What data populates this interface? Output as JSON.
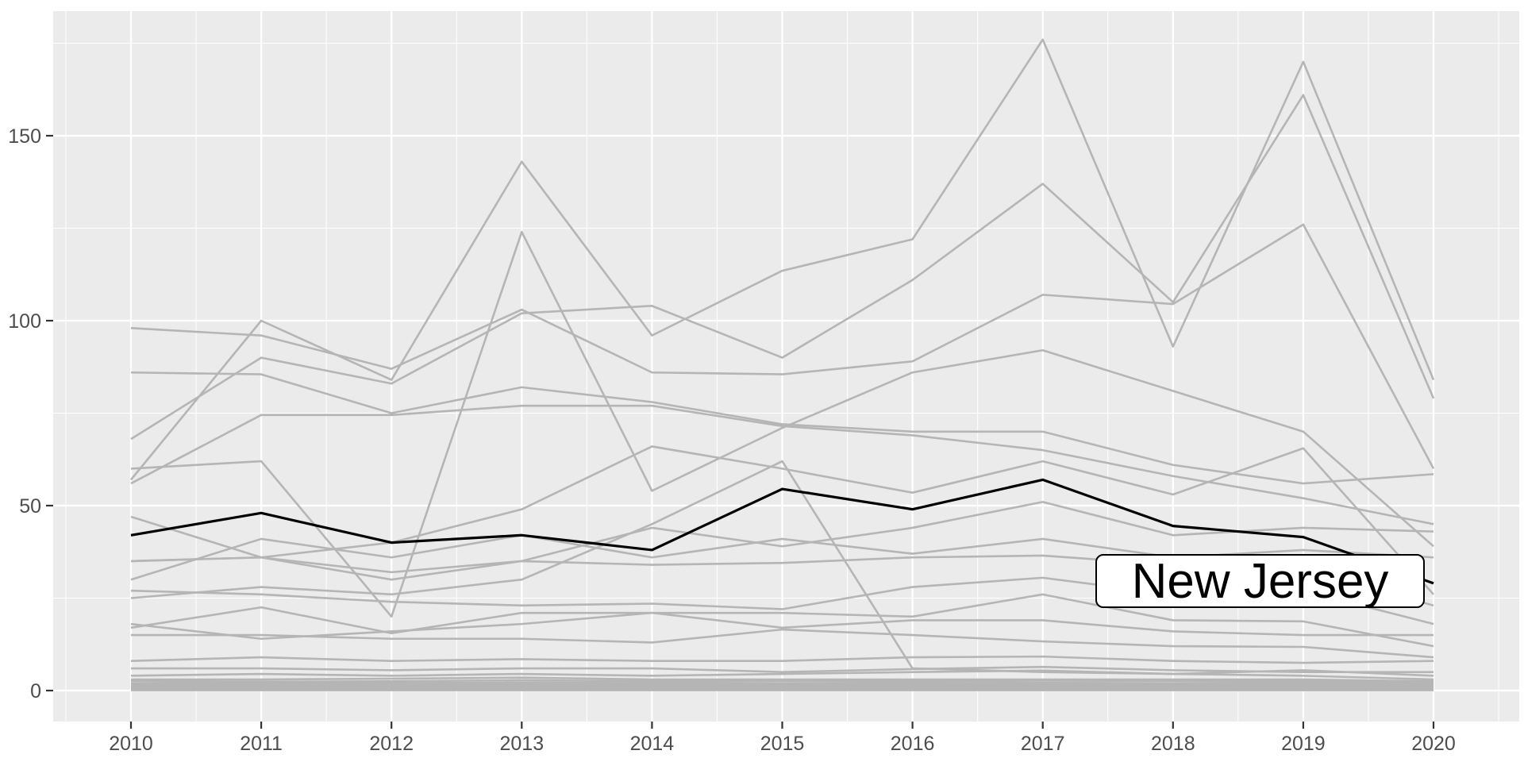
{
  "chart_data": {
    "type": "line",
    "title": "",
    "xlabel": "",
    "ylabel": "",
    "x": [
      2010,
      2011,
      2012,
      2013,
      2014,
      2015,
      2016,
      2017,
      2018,
      2019,
      2020
    ],
    "x_tick_labels": [
      "2010",
      "2011",
      "2012",
      "2013",
      "2014",
      "2015",
      "2016",
      "2017",
      "2018",
      "2019",
      "2020"
    ],
    "y_ticks": [
      0,
      50,
      100,
      150
    ],
    "y_tick_labels": [
      "0",
      "50",
      "100",
      "150"
    ],
    "ylim": [
      0,
      183
    ],
    "grid": "on",
    "legend": "none",
    "label": {
      "text": "New Jersey"
    },
    "highlight": {
      "id": "new-jersey",
      "values": [
        42,
        48,
        40,
        42,
        38,
        54.5,
        49,
        57,
        44.5,
        41.5,
        29
      ]
    },
    "series": [
      {
        "id": "line-01",
        "values": [
          57,
          100,
          84,
          143,
          96,
          113.5,
          122,
          176,
          93,
          170,
          84
        ]
      },
      {
        "id": "line-02",
        "values": [
          60,
          62,
          20,
          124,
          54,
          71,
          86,
          92,
          81,
          70,
          39
        ]
      },
      {
        "id": "line-03",
        "values": [
          68,
          90,
          83,
          102,
          104,
          90,
          111,
          137,
          105,
          161,
          79
        ]
      },
      {
        "id": "line-04",
        "values": [
          98,
          96,
          87,
          103,
          86,
          85.5,
          89,
          107,
          104.5,
          126,
          60
        ]
      },
      {
        "id": "line-05",
        "values": [
          86,
          85.5,
          75,
          82,
          78,
          72,
          70,
          70,
          61,
          56,
          58.5
        ]
      },
      {
        "id": "line-06",
        "values": [
          56,
          74.5,
          74.5,
          77,
          77,
          71.5,
          69,
          65,
          58,
          52,
          45
        ]
      },
      {
        "id": "line-07",
        "values": [
          35,
          36,
          40,
          49,
          66,
          60,
          53.5,
          62,
          53,
          65.5,
          26
        ]
      },
      {
        "id": "line-08",
        "values": [
          47,
          36,
          30,
          35,
          44,
          39,
          44,
          51,
          42,
          44,
          43
        ]
      },
      {
        "id": "line-09",
        "values": [
          30,
          41,
          36,
          42,
          36,
          41,
          37,
          41,
          36,
          38,
          36
        ]
      },
      {
        "id": "line-10",
        "values": [
          35,
          36,
          32,
          35,
          34,
          34.5,
          36,
          36.5,
          34,
          33,
          23
        ]
      },
      {
        "id": "line-11",
        "values": [
          27,
          26,
          24,
          23,
          23.5,
          22,
          28,
          30.5,
          26,
          27,
          18
        ]
      },
      {
        "id": "line-12",
        "values": [
          25,
          28,
          26,
          30,
          45,
          62,
          6,
          5,
          4.5,
          5.5,
          4
        ]
      },
      {
        "id": "line-13",
        "values": [
          17,
          22.5,
          15.5,
          21,
          21,
          21,
          20,
          26,
          19,
          18.7,
          12
        ]
      },
      {
        "id": "line-14",
        "values": [
          18,
          14,
          16,
          18,
          21,
          17,
          19,
          19,
          16,
          15,
          15
        ]
      },
      {
        "id": "line-15",
        "values": [
          15,
          15,
          14,
          14,
          13,
          16.5,
          15,
          13.3,
          12,
          11.8,
          9
        ]
      },
      {
        "id": "line-16",
        "values": [
          8,
          9,
          8,
          8.5,
          8,
          8,
          9,
          9.2,
          8,
          7.5,
          8
        ]
      },
      {
        "id": "line-17",
        "values": [
          6,
          6,
          5.5,
          6,
          6,
          5,
          5.8,
          6.4,
          5.5,
          5,
          5
        ]
      },
      {
        "id": "line-18",
        "values": [
          4,
          4.5,
          4,
          4.5,
          4,
          4.5,
          5,
          5.4,
          4.5,
          4,
          3
        ]
      },
      {
        "id": "line-19",
        "values": [
          3,
          3,
          3.2,
          3.5,
          3,
          3,
          3,
          3,
          3,
          3,
          2.5
        ]
      },
      {
        "id": "line-20",
        "values": [
          2.6,
          2.4,
          2.5,
          2.8,
          2.5,
          2.6,
          2.5,
          2.7,
          2.6,
          2.5,
          2
        ]
      },
      {
        "id": "line-21",
        "values": [
          2,
          2,
          2,
          2.2,
          2,
          2,
          2,
          2.1,
          2,
          2,
          1.5
        ]
      },
      {
        "id": "line-22",
        "values": [
          1.5,
          1.6,
          1.5,
          1.7,
          1.5,
          1.5,
          1.6,
          1.7,
          1.5,
          1.5,
          1.2
        ]
      },
      {
        "id": "line-23",
        "values": [
          1.2,
          1.3,
          1.2,
          1.4,
          1.2,
          1.2,
          1.3,
          1.4,
          1.2,
          1.2,
          1
        ]
      },
      {
        "id": "line-24",
        "values": [
          1,
          1,
          1.1,
          1.2,
          1,
          1,
          1,
          1.1,
          1,
          1,
          0.8
        ]
      },
      {
        "id": "line-25",
        "values": [
          0.6,
          0.7,
          0.6,
          0.8,
          0.7,
          0.6,
          0.7,
          0.8,
          0.6,
          0.7,
          0.5
        ]
      },
      {
        "id": "line-26",
        "values": [
          0.3,
          0.3,
          0.4,
          0.4,
          0.3,
          0.3,
          0.4,
          0.4,
          0.3,
          0.3,
          0.2
        ]
      },
      {
        "id": "line-27",
        "values": [
          0.1,
          0.1,
          0.1,
          0.1,
          0.1,
          0.1,
          0.1,
          0.1,
          0.1,
          0.1,
          0.1
        ]
      }
    ],
    "colors": {
      "gray_line": "#b5b5b5",
      "highlight_line": "#000000",
      "panel_background": "#ebebeb",
      "grid": "#ffffff",
      "axis_text": "#4d4d4d",
      "tick_mark": "#333333",
      "label_background": "#ffffff",
      "label_border": "#000000"
    }
  }
}
